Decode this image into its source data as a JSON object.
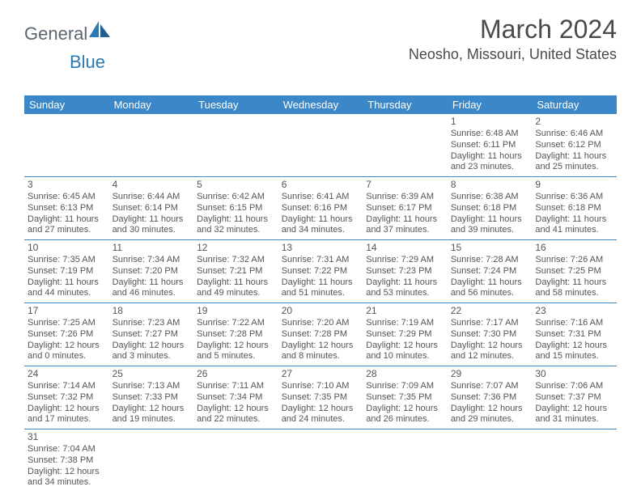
{
  "header": {
    "logo_text1": "General",
    "logo_text2": "Blue",
    "month_title": "March 2024",
    "location": "Neosho, Missouri, United States"
  },
  "colors": {
    "header_bg": "#3b87c8",
    "header_fg": "#ffffff",
    "border": "#3b87c8",
    "logo_gray": "#5b6670",
    "logo_blue": "#2a7ab8",
    "text": "#555555",
    "background": "#ffffff"
  },
  "weekdays": [
    "Sunday",
    "Monday",
    "Tuesday",
    "Wednesday",
    "Thursday",
    "Friday",
    "Saturday"
  ],
  "weeks": [
    [
      null,
      null,
      null,
      null,
      null,
      {
        "day": "1",
        "sunrise": "Sunrise: 6:48 AM",
        "sunset": "Sunset: 6:11 PM",
        "daylight1": "Daylight: 11 hours",
        "daylight2": "and 23 minutes."
      },
      {
        "day": "2",
        "sunrise": "Sunrise: 6:46 AM",
        "sunset": "Sunset: 6:12 PM",
        "daylight1": "Daylight: 11 hours",
        "daylight2": "and 25 minutes."
      }
    ],
    [
      {
        "day": "3",
        "sunrise": "Sunrise: 6:45 AM",
        "sunset": "Sunset: 6:13 PM",
        "daylight1": "Daylight: 11 hours",
        "daylight2": "and 27 minutes."
      },
      {
        "day": "4",
        "sunrise": "Sunrise: 6:44 AM",
        "sunset": "Sunset: 6:14 PM",
        "daylight1": "Daylight: 11 hours",
        "daylight2": "and 30 minutes."
      },
      {
        "day": "5",
        "sunrise": "Sunrise: 6:42 AM",
        "sunset": "Sunset: 6:15 PM",
        "daylight1": "Daylight: 11 hours",
        "daylight2": "and 32 minutes."
      },
      {
        "day": "6",
        "sunrise": "Sunrise: 6:41 AM",
        "sunset": "Sunset: 6:16 PM",
        "daylight1": "Daylight: 11 hours",
        "daylight2": "and 34 minutes."
      },
      {
        "day": "7",
        "sunrise": "Sunrise: 6:39 AM",
        "sunset": "Sunset: 6:17 PM",
        "daylight1": "Daylight: 11 hours",
        "daylight2": "and 37 minutes."
      },
      {
        "day": "8",
        "sunrise": "Sunrise: 6:38 AM",
        "sunset": "Sunset: 6:18 PM",
        "daylight1": "Daylight: 11 hours",
        "daylight2": "and 39 minutes."
      },
      {
        "day": "9",
        "sunrise": "Sunrise: 6:36 AM",
        "sunset": "Sunset: 6:18 PM",
        "daylight1": "Daylight: 11 hours",
        "daylight2": "and 41 minutes."
      }
    ],
    [
      {
        "day": "10",
        "sunrise": "Sunrise: 7:35 AM",
        "sunset": "Sunset: 7:19 PM",
        "daylight1": "Daylight: 11 hours",
        "daylight2": "and 44 minutes."
      },
      {
        "day": "11",
        "sunrise": "Sunrise: 7:34 AM",
        "sunset": "Sunset: 7:20 PM",
        "daylight1": "Daylight: 11 hours",
        "daylight2": "and 46 minutes."
      },
      {
        "day": "12",
        "sunrise": "Sunrise: 7:32 AM",
        "sunset": "Sunset: 7:21 PM",
        "daylight1": "Daylight: 11 hours",
        "daylight2": "and 49 minutes."
      },
      {
        "day": "13",
        "sunrise": "Sunrise: 7:31 AM",
        "sunset": "Sunset: 7:22 PM",
        "daylight1": "Daylight: 11 hours",
        "daylight2": "and 51 minutes."
      },
      {
        "day": "14",
        "sunrise": "Sunrise: 7:29 AM",
        "sunset": "Sunset: 7:23 PM",
        "daylight1": "Daylight: 11 hours",
        "daylight2": "and 53 minutes."
      },
      {
        "day": "15",
        "sunrise": "Sunrise: 7:28 AM",
        "sunset": "Sunset: 7:24 PM",
        "daylight1": "Daylight: 11 hours",
        "daylight2": "and 56 minutes."
      },
      {
        "day": "16",
        "sunrise": "Sunrise: 7:26 AM",
        "sunset": "Sunset: 7:25 PM",
        "daylight1": "Daylight: 11 hours",
        "daylight2": "and 58 minutes."
      }
    ],
    [
      {
        "day": "17",
        "sunrise": "Sunrise: 7:25 AM",
        "sunset": "Sunset: 7:26 PM",
        "daylight1": "Daylight: 12 hours",
        "daylight2": "and 0 minutes."
      },
      {
        "day": "18",
        "sunrise": "Sunrise: 7:23 AM",
        "sunset": "Sunset: 7:27 PM",
        "daylight1": "Daylight: 12 hours",
        "daylight2": "and 3 minutes."
      },
      {
        "day": "19",
        "sunrise": "Sunrise: 7:22 AM",
        "sunset": "Sunset: 7:28 PM",
        "daylight1": "Daylight: 12 hours",
        "daylight2": "and 5 minutes."
      },
      {
        "day": "20",
        "sunrise": "Sunrise: 7:20 AM",
        "sunset": "Sunset: 7:28 PM",
        "daylight1": "Daylight: 12 hours",
        "daylight2": "and 8 minutes."
      },
      {
        "day": "21",
        "sunrise": "Sunrise: 7:19 AM",
        "sunset": "Sunset: 7:29 PM",
        "daylight1": "Daylight: 12 hours",
        "daylight2": "and 10 minutes."
      },
      {
        "day": "22",
        "sunrise": "Sunrise: 7:17 AM",
        "sunset": "Sunset: 7:30 PM",
        "daylight1": "Daylight: 12 hours",
        "daylight2": "and 12 minutes."
      },
      {
        "day": "23",
        "sunrise": "Sunrise: 7:16 AM",
        "sunset": "Sunset: 7:31 PM",
        "daylight1": "Daylight: 12 hours",
        "daylight2": "and 15 minutes."
      }
    ],
    [
      {
        "day": "24",
        "sunrise": "Sunrise: 7:14 AM",
        "sunset": "Sunset: 7:32 PM",
        "daylight1": "Daylight: 12 hours",
        "daylight2": "and 17 minutes."
      },
      {
        "day": "25",
        "sunrise": "Sunrise: 7:13 AM",
        "sunset": "Sunset: 7:33 PM",
        "daylight1": "Daylight: 12 hours",
        "daylight2": "and 19 minutes."
      },
      {
        "day": "26",
        "sunrise": "Sunrise: 7:11 AM",
        "sunset": "Sunset: 7:34 PM",
        "daylight1": "Daylight: 12 hours",
        "daylight2": "and 22 minutes."
      },
      {
        "day": "27",
        "sunrise": "Sunrise: 7:10 AM",
        "sunset": "Sunset: 7:35 PM",
        "daylight1": "Daylight: 12 hours",
        "daylight2": "and 24 minutes."
      },
      {
        "day": "28",
        "sunrise": "Sunrise: 7:09 AM",
        "sunset": "Sunset: 7:35 PM",
        "daylight1": "Daylight: 12 hours",
        "daylight2": "and 26 minutes."
      },
      {
        "day": "29",
        "sunrise": "Sunrise: 7:07 AM",
        "sunset": "Sunset: 7:36 PM",
        "daylight1": "Daylight: 12 hours",
        "daylight2": "and 29 minutes."
      },
      {
        "day": "30",
        "sunrise": "Sunrise: 7:06 AM",
        "sunset": "Sunset: 7:37 PM",
        "daylight1": "Daylight: 12 hours",
        "daylight2": "and 31 minutes."
      }
    ],
    [
      {
        "day": "31",
        "sunrise": "Sunrise: 7:04 AM",
        "sunset": "Sunset: 7:38 PM",
        "daylight1": "Daylight: 12 hours",
        "daylight2": "and 34 minutes."
      },
      null,
      null,
      null,
      null,
      null,
      null
    ]
  ]
}
